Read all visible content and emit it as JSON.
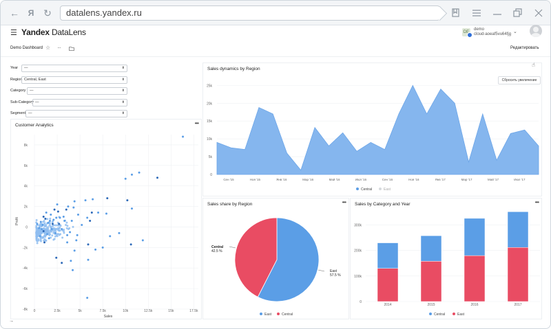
{
  "browser": {
    "url": "datalens.yandex.ru",
    "back_glyph": "←",
    "ya_glyph": "Я",
    "reload_glyph": "↻"
  },
  "app": {
    "logo_brand": "Yandex",
    "logo_product": "DataLens",
    "user_name": "demo",
    "user_id": "cloud-aoeaf5vu64fjg",
    "user_initials": "DE"
  },
  "dashboard": {
    "title": "Demo Dashboard",
    "edit_label": "Редактировать"
  },
  "filters": [
    {
      "label": "Year",
      "value": "—"
    },
    {
      "label": "Region",
      "value": "Central, East"
    },
    {
      "label": "Category",
      "value": "—"
    },
    {
      "label": "Sub-Category",
      "value": "—"
    },
    {
      "label": "Segment",
      "value": "—"
    }
  ],
  "colors": {
    "blue": "#5b9ee6",
    "area": "#85b6ee",
    "red": "#e94c63",
    "scatter_light": "#8fbdf0",
    "scatter_dark": "#2d69b8"
  },
  "panels": {
    "scatter_title": "Customer Analytics",
    "line_title": "Sales dynamics by Region",
    "pie_title": "Sales share by Region",
    "bar_title": "Sales by Category and Year",
    "reset_zoom_label": "Сбросить увеличение",
    "menu_glyph": "•••"
  },
  "chart_data": [
    {
      "type": "scatter",
      "title": "Customer Analytics",
      "xlabel": "Sales",
      "ylabel": "Profit",
      "xlim": [
        0,
        18000
      ],
      "ylim": [
        -8000,
        9000
      ],
      "x_ticks": [
        "0",
        "2.5k",
        "5k",
        "7.5k",
        "10k",
        "12.5k",
        "15k",
        "17.5k"
      ],
      "y_ticks": [
        "-8k",
        "-6k",
        "-4k",
        "-2k",
        "0",
        "2k",
        "4k",
        "6k",
        "8k"
      ],
      "points": [
        [
          16300,
          8800
        ],
        [
          13500,
          4800
        ],
        [
          11500,
          5300
        ],
        [
          10700,
          5100
        ],
        [
          10000,
          4700
        ],
        [
          8000,
          2800
        ],
        [
          6400,
          2700
        ],
        [
          5600,
          2600
        ],
        [
          4400,
          2500
        ],
        [
          10200,
          2600
        ],
        [
          10700,
          1800
        ],
        [
          7900,
          1300
        ],
        [
          7000,
          1400
        ],
        [
          6300,
          1400
        ],
        [
          5800,
          900
        ],
        [
          8300,
          -900
        ],
        [
          9300,
          -600
        ],
        [
          10600,
          -1700
        ],
        [
          11900,
          -1300
        ],
        [
          7500,
          -2000
        ],
        [
          6700,
          -2200
        ],
        [
          5900,
          -1700
        ],
        [
          4600,
          -1300
        ],
        [
          4400,
          -2300
        ],
        [
          3600,
          -1500
        ],
        [
          2400,
          -3000
        ],
        [
          4000,
          -3300
        ],
        [
          5900,
          -3200
        ],
        [
          4200,
          -4200
        ],
        [
          3000,
          -3500
        ],
        [
          5800,
          -6900
        ],
        [
          3600,
          -800
        ],
        [
          3200,
          1000
        ],
        [
          2600,
          1500
        ],
        [
          2100,
          700
        ],
        [
          1800,
          1200
        ],
        [
          1500,
          400
        ],
        [
          1200,
          800
        ],
        [
          900,
          200
        ],
        [
          700,
          500
        ],
        [
          500,
          -100
        ],
        [
          1000,
          -400
        ],
        [
          1400,
          -700
        ],
        [
          1900,
          -200
        ],
        [
          2300,
          -600
        ],
        [
          2700,
          300
        ],
        [
          3000,
          -200
        ],
        [
          3300,
          600
        ],
        [
          2800,
          900
        ],
        [
          2200,
          1700
        ],
        [
          4800,
          1200
        ],
        [
          4100,
          600
        ],
        [
          3900,
          -500
        ],
        [
          3500,
          1700
        ],
        [
          4300,
          1900
        ],
        [
          3700,
          2000
        ],
        [
          2500,
          2200
        ],
        [
          6100,
          600
        ],
        [
          5200,
          200
        ],
        [
          4700,
          -800
        ],
        [
          1600,
          -1100
        ],
        [
          1100,
          -1500
        ],
        [
          600,
          -900
        ],
        [
          300,
          300
        ],
        [
          1300,
          1400
        ],
        [
          2000,
          300
        ],
        [
          2400,
          900
        ],
        [
          1700,
          600
        ],
        [
          800,
          -200
        ],
        [
          1000,
          1000
        ]
      ]
    },
    {
      "type": "area",
      "title": "Sales dynamics by Region",
      "ylim": [
        0,
        27000
      ],
      "y_ticks": [
        "0",
        "5k",
        "10k",
        "15k",
        "20k",
        "25k"
      ],
      "x_ticks": [
        "Сен '15",
        "Ноя '15",
        "Янв '16",
        "Мар '16",
        "Май '16",
        "Июл '16",
        "Сен '16",
        "Ноя '16",
        "Янв '17",
        "Мар '17",
        "Май '17",
        "Июл '17"
      ],
      "legend": [
        "Central",
        "East"
      ],
      "series": [
        {
          "name": "Central",
          "values": [
            9000,
            7500,
            7000,
            18800,
            17000,
            6000,
            1200,
            13200,
            8000,
            11700,
            6500,
            9000,
            7000,
            17000,
            25000,
            17000,
            24000,
            20000,
            3500,
            17000,
            4000,
            11500,
            12500,
            8000
          ]
        }
      ]
    },
    {
      "type": "pie",
      "title": "Sales share by Region",
      "legend": [
        "East",
        "Central"
      ],
      "slices": [
        {
          "name": "East",
          "value": 57.5,
          "label": "57.5 %"
        },
        {
          "name": "Central",
          "value": 42.5,
          "label": "42.5 %"
        }
      ]
    },
    {
      "type": "bar",
      "title": "Sales by Category and Year",
      "stacked": true,
      "categories": [
        "2014",
        "2015",
        "2016",
        "2017"
      ],
      "ylim": [
        0,
        350000
      ],
      "y_ticks": [
        "0",
        "100k",
        "200k",
        "300k"
      ],
      "legend": [
        "Central",
        "East"
      ],
      "series": [
        {
          "name": "East",
          "values": [
            130000,
            158000,
            180000,
            212000
          ]
        },
        {
          "name": "Central",
          "values": [
            100000,
            100000,
            146000,
            140000
          ]
        }
      ]
    }
  ]
}
